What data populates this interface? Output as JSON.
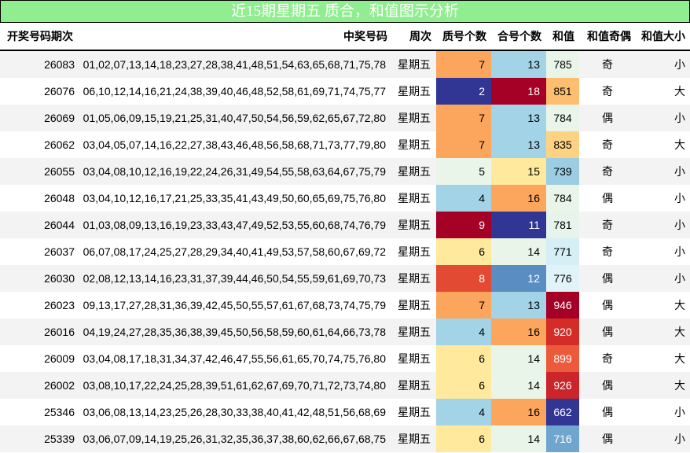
{
  "title": "近15期星期五 质合，和值图示分析",
  "columns": [
    "开奖号码期次",
    "中奖号码",
    "周次",
    "质号个数",
    "合号个数",
    "和值",
    "和值奇偶",
    "和值大小"
  ],
  "colors": {
    "title_bg": "#90ee90",
    "row_stripe": "#f3f3f3",
    "heat_scale": [
      "#313695",
      "#4575b4",
      "#74add1",
      "#abd9e9",
      "#e0f3f8",
      "#ffffbf",
      "#fee090",
      "#fdae61",
      "#f46d43",
      "#d73027",
      "#a50026"
    ]
  },
  "rows": [
    {
      "issue": "26083",
      "numbers": "01,02,07,13,14,18,23,27,28,38,41,48,51,54,63,65,68,71,75,78",
      "weekday": "星期五",
      "prime": "7",
      "composite": "13",
      "sum": "785",
      "parity": "奇",
      "size": "小",
      "prime_bg": "#fca55d",
      "prime_fg": "#000",
      "comp_bg": "#a3d3e6",
      "comp_fg": "#000",
      "sum_bg": "#e9f5e8",
      "sum_fg": "#000"
    },
    {
      "issue": "26076",
      "numbers": "06,10,12,14,16,21,24,38,39,40,46,48,52,58,61,69,71,74,75,77",
      "weekday": "星期五",
      "prime": "2",
      "composite": "18",
      "sum": "851",
      "parity": "奇",
      "size": "大",
      "prime_bg": "#313695",
      "prime_fg": "#fff",
      "comp_bg": "#a50026",
      "comp_fg": "#fff",
      "sum_bg": "#fdbe70",
      "sum_fg": "#000"
    },
    {
      "issue": "26069",
      "numbers": "01,05,06,09,15,19,21,25,31,40,47,50,54,56,59,62,65,67,72,80",
      "weekday": "星期五",
      "prime": "7",
      "composite": "13",
      "sum": "784",
      "parity": "偶",
      "size": "小",
      "prime_bg": "#fca55d",
      "prime_fg": "#000",
      "comp_bg": "#a3d3e6",
      "comp_fg": "#000",
      "sum_bg": "#e9f5e8",
      "sum_fg": "#000"
    },
    {
      "issue": "26062",
      "numbers": "03,04,05,07,14,16,22,27,38,43,46,48,56,58,68,71,73,77,79,80",
      "weekday": "星期五",
      "prime": "7",
      "composite": "13",
      "sum": "835",
      "parity": "奇",
      "size": "大",
      "prime_bg": "#fca55d",
      "prime_fg": "#000",
      "comp_bg": "#a3d3e6",
      "comp_fg": "#000",
      "sum_bg": "#fed283",
      "sum_fg": "#000"
    },
    {
      "issue": "26055",
      "numbers": "03,04,08,10,12,16,19,22,24,26,31,49,54,55,58,63,64,67,75,79",
      "weekday": "星期五",
      "prime": "5",
      "composite": "15",
      "sum": "739",
      "parity": "奇",
      "size": "小",
      "prime_bg": "#e9f5e8",
      "prime_fg": "#000",
      "comp_bg": "#fee99d",
      "comp_fg": "#000",
      "sum_bg": "#9ccde3",
      "sum_fg": "#000"
    },
    {
      "issue": "26048",
      "numbers": "03,04,10,12,16,17,21,25,33,35,41,43,49,50,60,65,69,75,76,80",
      "weekday": "星期五",
      "prime": "4",
      "composite": "16",
      "sum": "784",
      "parity": "偶",
      "size": "小",
      "prime_bg": "#a3d3e6",
      "prime_fg": "#000",
      "comp_bg": "#fca55d",
      "comp_fg": "#000",
      "sum_bg": "#e9f5e8",
      "sum_fg": "#000"
    },
    {
      "issue": "26044",
      "numbers": "01,03,08,09,13,16,19,23,33,43,47,49,52,53,55,60,68,74,76,79",
      "weekday": "星期五",
      "prime": "9",
      "composite": "11",
      "sum": "781",
      "parity": "奇",
      "size": "小",
      "prime_bg": "#a50026",
      "prime_fg": "#fff",
      "comp_bg": "#313695",
      "comp_fg": "#fff",
      "sum_bg": "#e6f4ec",
      "sum_fg": "#000"
    },
    {
      "issue": "26037",
      "numbers": "06,07,08,17,24,25,27,28,29,34,40,41,49,53,57,58,60,67,69,72",
      "weekday": "星期五",
      "prime": "6",
      "composite": "14",
      "sum": "771",
      "parity": "奇",
      "size": "小",
      "prime_bg": "#fee99d",
      "prime_fg": "#000",
      "comp_bg": "#e9f5e8",
      "comp_fg": "#000",
      "sum_bg": "#d6eef5",
      "sum_fg": "#000"
    },
    {
      "issue": "26030",
      "numbers": "02,08,12,13,14,16,23,31,37,39,44,46,50,54,55,59,61,69,70,73",
      "weekday": "星期五",
      "prime": "8",
      "composite": "12",
      "sum": "776",
      "parity": "偶",
      "size": "小",
      "prime_bg": "#e34a33",
      "prime_fg": "#fff",
      "comp_bg": "#5a8dc2",
      "comp_fg": "#fff",
      "sum_bg": "#e0f3f8",
      "sum_fg": "#000"
    },
    {
      "issue": "26023",
      "numbers": "09,13,17,27,28,31,36,39,42,45,50,55,57,61,67,68,73,74,75,79",
      "weekday": "星期五",
      "prime": "7",
      "composite": "13",
      "sum": "946",
      "parity": "偶",
      "size": "大",
      "prime_bg": "#fca55d",
      "prime_fg": "#000",
      "comp_bg": "#a3d3e6",
      "comp_fg": "#000",
      "sum_bg": "#a50026",
      "sum_fg": "#fff"
    },
    {
      "issue": "26016",
      "numbers": "04,19,24,27,28,35,36,38,39,45,50,56,58,59,60,61,64,66,73,78",
      "weekday": "星期五",
      "prime": "4",
      "composite": "16",
      "sum": "920",
      "parity": "偶",
      "size": "大",
      "prime_bg": "#a3d3e6",
      "prime_fg": "#000",
      "comp_bg": "#fca55d",
      "comp_fg": "#000",
      "sum_bg": "#d42d27",
      "sum_fg": "#fff"
    },
    {
      "issue": "26009",
      "numbers": "03,04,08,17,18,31,34,37,42,46,47,55,56,61,65,70,74,75,76,80",
      "weekday": "星期五",
      "prime": "6",
      "composite": "14",
      "sum": "899",
      "parity": "奇",
      "size": "大",
      "prime_bg": "#fee99d",
      "prime_fg": "#000",
      "comp_bg": "#e9f5e8",
      "comp_fg": "#000",
      "sum_bg": "#ec5a3c",
      "sum_fg": "#fff"
    },
    {
      "issue": "26002",
      "numbers": "03,08,10,17,22,24,25,28,39,51,61,62,67,69,70,71,72,73,74,80",
      "weekday": "星期五",
      "prime": "6",
      "composite": "14",
      "sum": "926",
      "parity": "偶",
      "size": "大",
      "prime_bg": "#fee99d",
      "prime_fg": "#000",
      "comp_bg": "#e9f5e8",
      "comp_fg": "#000",
      "sum_bg": "#cb2429",
      "sum_fg": "#fff"
    },
    {
      "issue": "25346",
      "numbers": "03,06,08,13,14,23,25,26,28,30,33,38,40,41,42,48,51,56,68,69",
      "weekday": "星期五",
      "prime": "4",
      "composite": "16",
      "sum": "662",
      "parity": "偶",
      "size": "小",
      "prime_bg": "#a3d3e6",
      "prime_fg": "#000",
      "comp_bg": "#fca55d",
      "comp_fg": "#000",
      "sum_bg": "#313695",
      "sum_fg": "#fff"
    },
    {
      "issue": "25339",
      "numbers": "03,06,07,09,14,19,25,26,31,32,35,36,37,38,60,62,66,67,68,75",
      "weekday": "星期五",
      "prime": "6",
      "composite": "14",
      "sum": "716",
      "parity": "偶",
      "size": "小",
      "prime_bg": "#fee99d",
      "prime_fg": "#000",
      "comp_bg": "#e9f5e8",
      "comp_fg": "#000",
      "sum_bg": "#6fa6cf",
      "sum_fg": "#fff"
    }
  ]
}
